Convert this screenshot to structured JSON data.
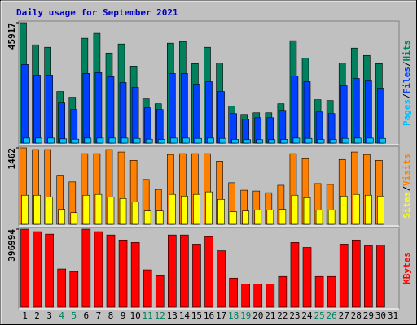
{
  "chart_data": [
    {
      "type": "bar",
      "title": "Daily usage for September 2021",
      "legend_separator": "/",
      "ylim": [
        0,
        45917
      ],
      "yticks": [
        45917
      ],
      "series": [
        {
          "name": "Hits",
          "color": "#00805c",
          "values": [
            45917,
            37485,
            36548,
            19680,
            17493,
            39983,
            41857,
            34360,
            37796,
            29362,
            16868,
            14993,
            38109,
            38734,
            30300,
            36548,
            30612,
            14056,
            10933,
            11557,
            11557,
            14993,
            39046,
            32486,
            16555,
            16243,
            30612,
            36235,
            33423,
            30300,
            null
          ]
        },
        {
          "name": "Files",
          "color": "#0040ff",
          "values": [
            29990,
            25929,
            25929,
            15308,
            12808,
            26554,
            26866,
            25304,
            23118,
            21243,
            13433,
            12808,
            26554,
            26554,
            22493,
            23430,
            19681,
            11246,
            9060,
            9684,
            9684,
            12496,
            25617,
            23430,
            11871,
            11246,
            21868,
            24680,
            23742,
            20931,
            null
          ]
        },
        {
          "name": "Pages",
          "color": "#00c0ff",
          "values": [
            1900,
            1900,
            1900,
            1600,
            1500,
            1900,
            1900,
            1900,
            1900,
            1800,
            1500,
            1400,
            1900,
            1900,
            1800,
            1900,
            1800,
            1400,
            1300,
            1300,
            1300,
            1400,
            1900,
            1800,
            1400,
            1400,
            1800,
            1900,
            1900,
            1800,
            null
          ]
        }
      ]
    },
    {
      "type": "bar",
      "ylim": [
        0,
        1462
      ],
      "yticks": [
        1462
      ],
      "series": [
        {
          "name": "Visits",
          "color": "#ff8000",
          "values": [
            1462,
            1430,
            1430,
            938,
            811,
            1351,
            1351,
            1430,
            1383,
            1224,
            858,
            667,
            1335,
            1351,
            1351,
            1351,
            1208,
            795,
            652,
            636,
            604,
            747,
            1351,
            1255,
            779,
            763,
            1240,
            1383,
            1335,
            1224,
            null
          ]
        },
        {
          "name": "Sites",
          "color": "#ffff00",
          "values": [
            556,
            556,
            524,
            286,
            222,
            556,
            572,
            524,
            493,
            429,
            254,
            254,
            572,
            540,
            572,
            620,
            477,
            238,
            254,
            270,
            270,
            286,
            556,
            508,
            270,
            270,
            540,
            572,
            556,
            540,
            null
          ]
        }
      ]
    },
    {
      "type": "bar",
      "ylim": [
        0,
        396994
      ],
      "yticks": [
        396994
      ],
      "categories": [
        "1",
        "2",
        "3",
        "4",
        "5",
        "6",
        "7",
        "8",
        "9",
        "10",
        "11",
        "12",
        "13",
        "14",
        "15",
        "16",
        "17",
        "18",
        "19",
        "20",
        "21",
        "22",
        "23",
        "24",
        "25",
        "26",
        "27",
        "28",
        "29",
        "30",
        "31"
      ],
      "category_colors": [
        "#000000",
        "#000000",
        "#000000",
        "#00805c",
        "#00805c",
        "#000000",
        "#000000",
        "#000000",
        "#000000",
        "#000000",
        "#00805c",
        "#00805c",
        "#000000",
        "#000000",
        "#000000",
        "#000000",
        "#000000",
        "#00805c",
        "#00805c",
        "#000000",
        "#000000",
        "#000000",
        "#000000",
        "#000000",
        "#00805c",
        "#00805c",
        "#000000",
        "#000000",
        "#000000",
        "#000000",
        "#000000"
      ],
      "series": [
        {
          "name": "KBytes",
          "color": "#ff0000",
          "values": [
            396994,
            384293,
            371624,
            194258,
            181589,
            396994,
            384293,
            367401,
            342063,
            329394,
            190035,
            160474,
            367401,
            367401,
            320948,
            358955,
            287164,
            147805,
            118244,
            118244,
            118244,
            156251,
            329394,
            304056,
            156251,
            156251,
            320948,
            342063,
            312502,
            316725,
            null
          ]
        }
      ]
    }
  ]
}
